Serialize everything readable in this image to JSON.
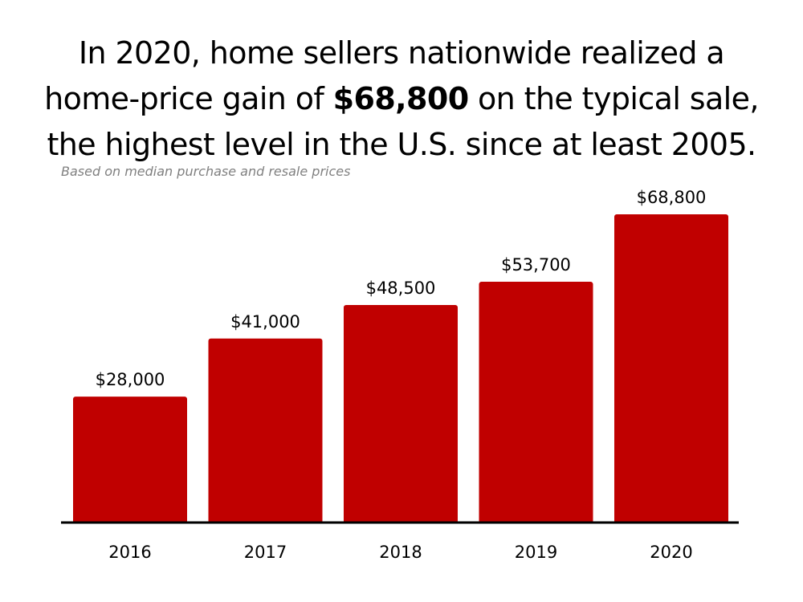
{
  "header": {
    "title_line1": "In 2020, home sellers nationwide realized a",
    "title_line2_pre": "home-price gain of ",
    "title_line2_bold": "$68,800",
    "title_line2_post": " on the typical sale,",
    "title_line3": "the highest level in the U.S. since at least 2005.",
    "subtitle": "Based on median purchase and resale prices"
  },
  "colors": {
    "bar": "#c00000",
    "axis": "#000000",
    "subtitle": "#808080"
  },
  "chart_data": {
    "type": "bar",
    "categories": [
      "2016",
      "2017",
      "2018",
      "2019",
      "2020"
    ],
    "values": [
      28000,
      41000,
      48500,
      53700,
      68800
    ],
    "data_labels": [
      "$28,000",
      "$41,000",
      "$48,500",
      "$53,700",
      "$68,800"
    ],
    "title": "In 2020, home sellers nationwide realized a home-price gain of $68,800 on the typical sale, the highest level in the U.S. since at least 2005.",
    "subtitle": "Based on median purchase and resale prices",
    "xlabel": "",
    "ylabel": "",
    "ylim": [
      0,
      68800
    ],
    "grid": false,
    "legend": "none"
  }
}
